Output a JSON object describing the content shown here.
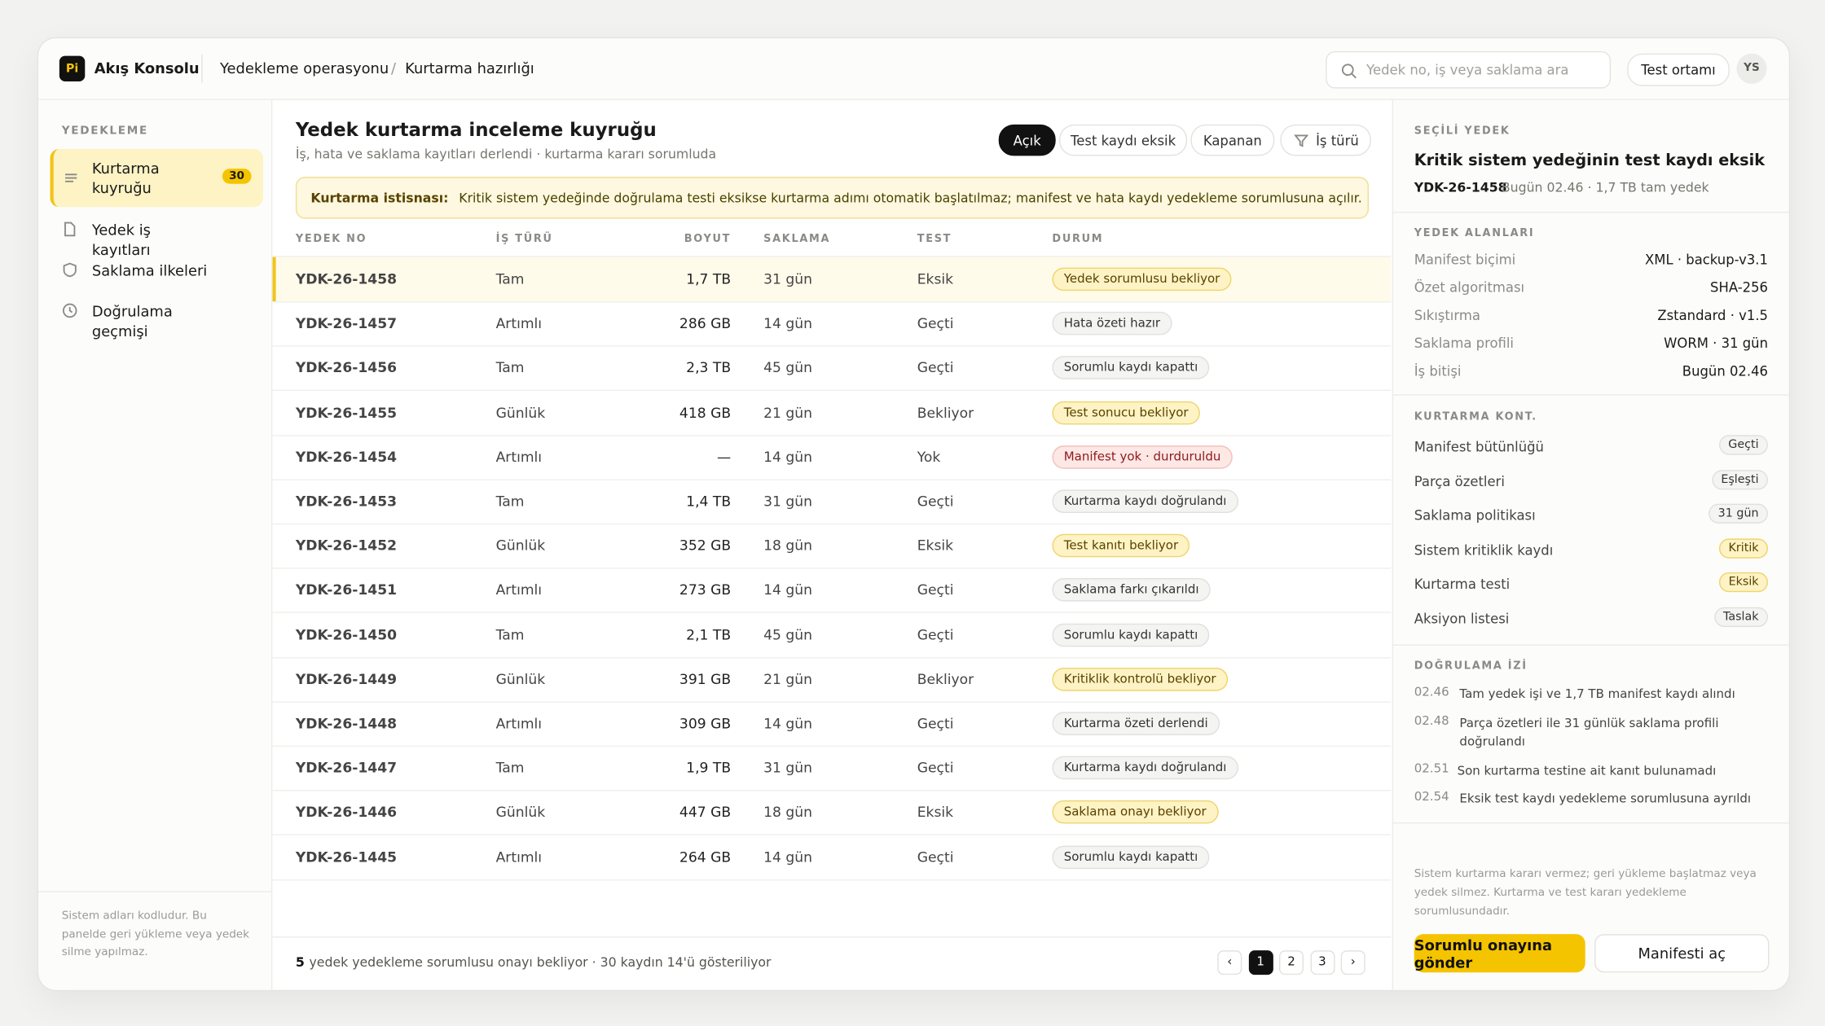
{
  "app": {
    "logo": "Pi",
    "name": "Akış Konsolu",
    "breadcrumb": [
      "Yedekleme operasyonu",
      "Kurtarma hazırlığı"
    ],
    "breadcrumb_sep": "/",
    "search_placeholder": "Yedek no, iş veya saklama ara",
    "environment": "Test ortamı",
    "user": "YS"
  },
  "sidebar": {
    "section": "YEDEKLEME",
    "items": [
      {
        "label": "Kurtarma kuyruğu",
        "badge": "30",
        "active": true
      },
      {
        "label": "Yedek iş kayıtları"
      },
      {
        "label": "Saklama ilkeleri"
      },
      {
        "label": "Doğrulama geçmişi"
      }
    ],
    "footnote": "Sistem adları kodludur. Bu panelde geri yükleme veya yedek silme yapılmaz."
  },
  "main": {
    "title": "Yedek kurtarma inceleme kuyruğu",
    "subtitle": "İş, hata ve saklama kayıtları derlendi · kurtarma kararı sorumluda",
    "filters": [
      "Açık",
      "Test kaydı eksik",
      "Kapanan",
      "İş türü"
    ],
    "notice": {
      "label": "Kurtarma istisnası:",
      "text": "Kritik sistem yedeğinde doğrulama testi eksikse kurtarma adımı otomatik başlatılmaz; manifest ve hata kaydı yedekleme sorumlusuna açılır."
    },
    "table": {
      "columns": [
        "YEDEK NO",
        "İŞ TÜRÜ",
        "BOYUT",
        "SAKLAMA",
        "TEST",
        "DURUM"
      ],
      "rows": [
        {
          "cells": [
            "YDK-26-1458",
            "Tam",
            "1,7 TB",
            "31 gün",
            "Eksik",
            "Yedek sorumlusu bekliyor"
          ],
          "tone": "warning"
        },
        {
          "cells": [
            "YDK-26-1457",
            "Artımlı",
            "286 GB",
            "14 gün",
            "Geçti",
            "Hata özeti hazır"
          ],
          "tone": "neutral"
        },
        {
          "cells": [
            "YDK-26-1456",
            "Tam",
            "2,3 TB",
            "45 gün",
            "Geçti",
            "Sorumlu kaydı kapattı"
          ],
          "tone": "neutral"
        },
        {
          "cells": [
            "YDK-26-1455",
            "Günlük",
            "418 GB",
            "21 gün",
            "Bekliyor",
            "Test sonucu bekliyor"
          ],
          "tone": "warning"
        },
        {
          "cells": [
            "YDK-26-1454",
            "Artımlı",
            "—",
            "14 gün",
            "Yok",
            "Manifest yok · durduruldu"
          ],
          "tone": "danger"
        },
        {
          "cells": [
            "YDK-26-1453",
            "Tam",
            "1,4 TB",
            "31 gün",
            "Geçti",
            "Kurtarma kaydı doğrulandı"
          ],
          "tone": "neutral"
        },
        {
          "cells": [
            "YDK-26-1452",
            "Günlük",
            "352 GB",
            "18 gün",
            "Eksik",
            "Test kanıtı bekliyor"
          ],
          "tone": "warning"
        },
        {
          "cells": [
            "YDK-26-1451",
            "Artımlı",
            "273 GB",
            "14 gün",
            "Geçti",
            "Saklama farkı çıkarıldı"
          ],
          "tone": "neutral"
        },
        {
          "cells": [
            "YDK-26-1450",
            "Tam",
            "2,1 TB",
            "45 gün",
            "Geçti",
            "Sorumlu kaydı kapattı"
          ],
          "tone": "neutral"
        },
        {
          "cells": [
            "YDK-26-1449",
            "Günlük",
            "391 GB",
            "21 gün",
            "Bekliyor",
            "Kritiklik kontrolü bekliyor"
          ],
          "tone": "warning"
        },
        {
          "cells": [
            "YDK-26-1448",
            "Artımlı",
            "309 GB",
            "14 gün",
            "Geçti",
            "Kurtarma özeti derlendi"
          ],
          "tone": "neutral"
        },
        {
          "cells": [
            "YDK-26-1447",
            "Tam",
            "1,9 TB",
            "31 gün",
            "Geçti",
            "Kurtarma kaydı doğrulandı"
          ],
          "tone": "neutral"
        },
        {
          "cells": [
            "YDK-26-1446",
            "Günlük",
            "447 GB",
            "18 gün",
            "Eksik",
            "Saklama onayı bekliyor"
          ],
          "tone": "warning"
        },
        {
          "cells": [
            "YDK-26-1445",
            "Artımlı",
            "264 GB",
            "14 gün",
            "Geçti",
            "Sorumlu kaydı kapattı"
          ],
          "tone": "neutral"
        }
      ]
    },
    "footer": {
      "count": "5",
      "text": "yedek yedekleme sorumlusu onayı bekliyor · 30 kaydın 14'ü gösteriliyor",
      "pages": [
        "‹",
        "1",
        "2",
        "3",
        "›"
      ]
    }
  },
  "detail": {
    "label": "SEÇİLİ YEDEK",
    "title": "Kritik sistem yedeğinin test kaydı eksik",
    "id": "YDK-26-1458",
    "meta": "Bugün 02.46 · 1,7 TB tam yedek",
    "fields_title": "YEDEK ALANLARI",
    "fields": [
      [
        "Manifest biçimi",
        "XML · backup-v3.1"
      ],
      [
        "Özet algoritması",
        "SHA-256"
      ],
      [
        "Sıkıştırma",
        "Zstandard · v1.5"
      ],
      [
        "Saklama profili",
        "WORM · 31 gün"
      ],
      [
        "İş bitişi",
        "Bugün 02.46"
      ]
    ],
    "checks_title": "KURTARMA KONT.",
    "checks": [
      {
        "label": "Manifest bütünlüğü",
        "value": "Geçti",
        "tone": "neutral"
      },
      {
        "label": "Parça özetleri",
        "value": "Eşleşti",
        "tone": "neutral"
      },
      {
        "label": "Saklama politikası",
        "value": "31 gün",
        "tone": "neutral"
      },
      {
        "label": "Sistem kritiklik kaydı",
        "value": "Kritik",
        "tone": "warning"
      },
      {
        "label": "Kurtarma testi",
        "value": "Eksik",
        "tone": "warning"
      },
      {
        "label": "Aksiyon listesi",
        "value": "Taslak",
        "tone": "neutral"
      }
    ],
    "trail_title": "DOĞRULAMA İZİ",
    "trail": [
      [
        "02.46",
        "Tam yedek işi ve 1,7 TB manifest kaydı alındı"
      ],
      [
        "02.48",
        "Parça özetleri ile 31 günlük saklama profili doğrulandı"
      ],
      [
        "02.51",
        "Son kurtarma testine ait kanıt bulunamadı"
      ],
      [
        "02.54",
        "Eksik test kaydı yedeklemе sorumlusuna ayrıldı"
      ]
    ],
    "disclaimer": "Sistem kurtarma kararı vermez; geri yükleme başlatmaz veya yedek silmez. Kurtarma ve test kararı yedekleme sorumlusundadır.",
    "primary": "Sorumlu onayına gönder",
    "secondary": "Manifesti aç"
  }
}
